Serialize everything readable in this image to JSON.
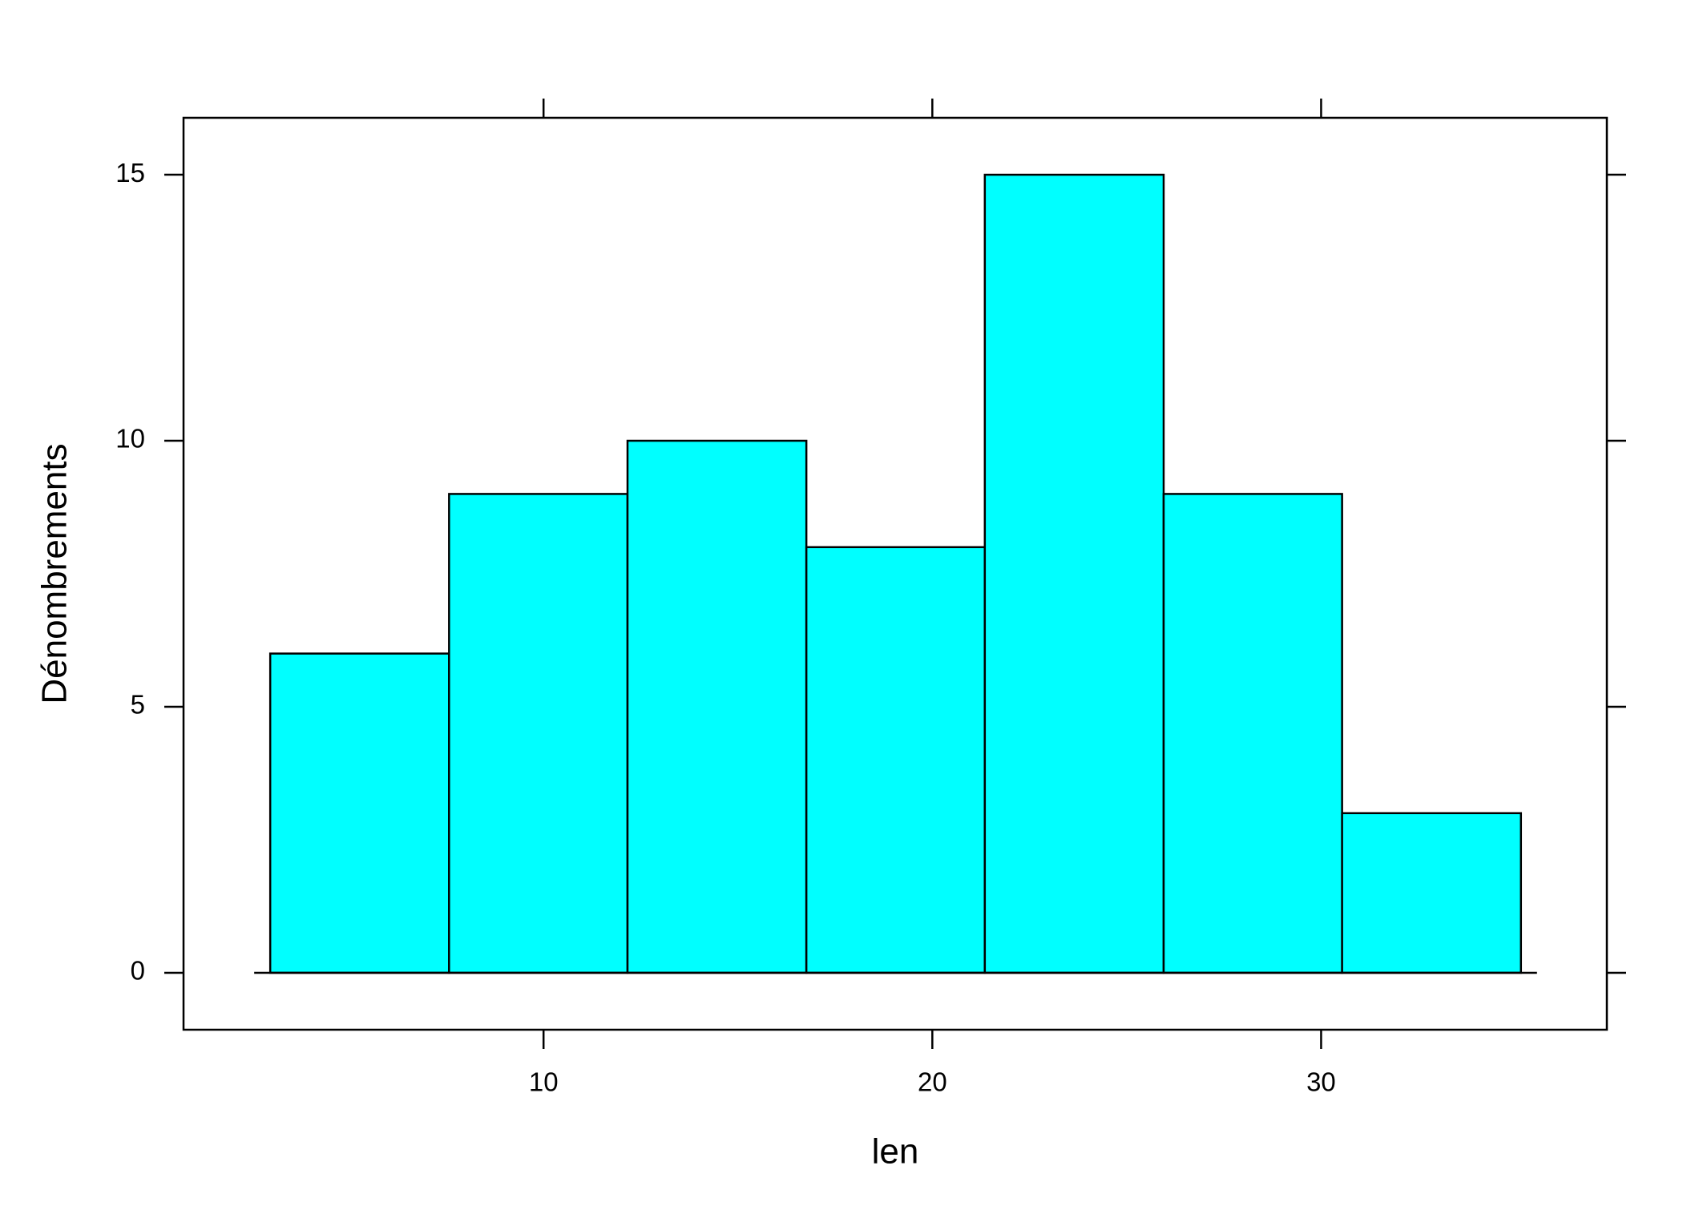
{
  "chart_data": {
    "type": "histogram",
    "x_label": "len",
    "y_label": "Dénombrements",
    "bins": [
      2.97,
      7.57,
      12.16,
      16.76,
      21.35,
      25.95,
      30.54,
      35.14
    ],
    "values": [
      6,
      9,
      10,
      8,
      15,
      9,
      3
    ],
    "color": "#00ffff",
    "xlim": [
      0.74,
      37.35
    ],
    "xticks": [
      10,
      20,
      30
    ],
    "ylim": [
      -1.07,
      16.07
    ],
    "yticks": [
      0,
      5,
      10,
      15
    ]
  }
}
